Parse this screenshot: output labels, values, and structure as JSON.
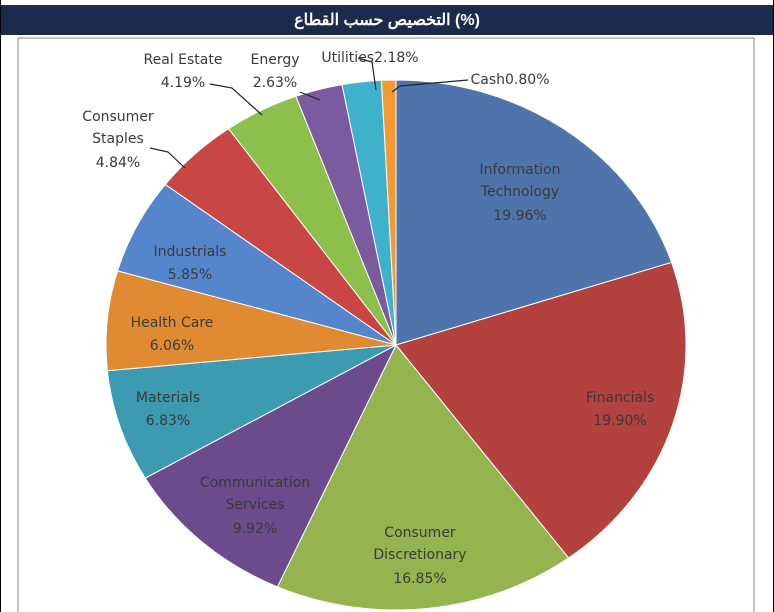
{
  "chart_data": {
    "type": "pie",
    "title": "التخصيص حسب القطاع (%)",
    "categories": [
      "Information Technology",
      "Financials",
      "Consumer Discretionary",
      "Communication Services",
      "Materials",
      "Health Care",
      "Industrials",
      "Consumer Staples",
      "Real Estate",
      "Energy",
      "Utilities",
      "Cash"
    ],
    "values": [
      19.96,
      19.9,
      16.85,
      9.92,
      6.83,
      6.06,
      5.85,
      4.84,
      4.19,
      2.63,
      2.18,
      0.8
    ],
    "value_labels": [
      "19.96%",
      "19.90%",
      "16.85%",
      "9.92%",
      "6.83%",
      "6.06%",
      "5.85%",
      "4.84%",
      "4.19%",
      "2.63%",
      "2.18%",
      "0.80%"
    ],
    "colors": [
      "#4f74ab",
      "#b3413d",
      "#93b44f",
      "#6c4b8c",
      "#3c9bb1",
      "#e08a31",
      "#5586cc",
      "#c84643",
      "#8dbf4c",
      "#7c5a9f",
      "#3fb2cb",
      "#f59a33"
    ]
  }
}
